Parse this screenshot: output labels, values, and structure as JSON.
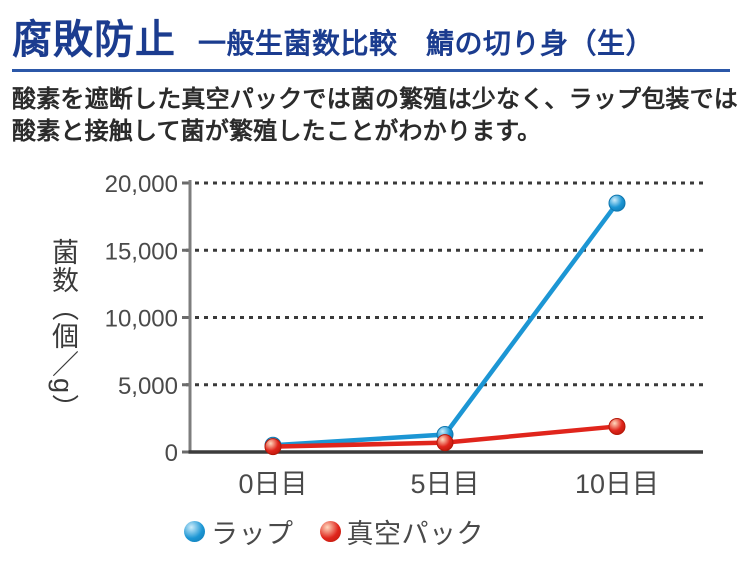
{
  "header": {
    "title_main": "腐敗防止",
    "title_sub": "一般生菌数比較　鯖の切り身（生）",
    "title_color": "#1b3c8f",
    "underline_color": "#2b57a8"
  },
  "description": "酸素を遮断した真空パックでは菌の繁殖は少なく、ラップ包装では酸素と接触して菌が繁殖したことがわかります。",
  "chart_data": {
    "type": "line",
    "title": "",
    "xlabel": "",
    "ylabel": "菌数（個／g）",
    "categories": [
      "0日目",
      "5日目",
      "10日目"
    ],
    "yticks": [
      0,
      5000,
      10000,
      15000,
      20000
    ],
    "ytick_labels": [
      "0",
      "5,000",
      "10,000",
      "15,000",
      "20,000"
    ],
    "ylim": [
      0,
      20000
    ],
    "grid": "dotted-horizontal",
    "legend_position": "bottom",
    "axis_color": "#7d7d7d",
    "baseline_color": "#3c3c3c",
    "grid_color": "#3a3a3a",
    "series": [
      {
        "name": "ラップ",
        "values": [
          500,
          1300,
          18500
        ],
        "color": "#1C96D4",
        "color_light": "#CDEDFB",
        "color_dark": "#0E76AE"
      },
      {
        "name": "真空パック",
        "values": [
          400,
          700,
          1900
        ],
        "color": "#E0251C",
        "color_light": "#FFD9BE",
        "color_dark": "#B51708"
      }
    ]
  }
}
